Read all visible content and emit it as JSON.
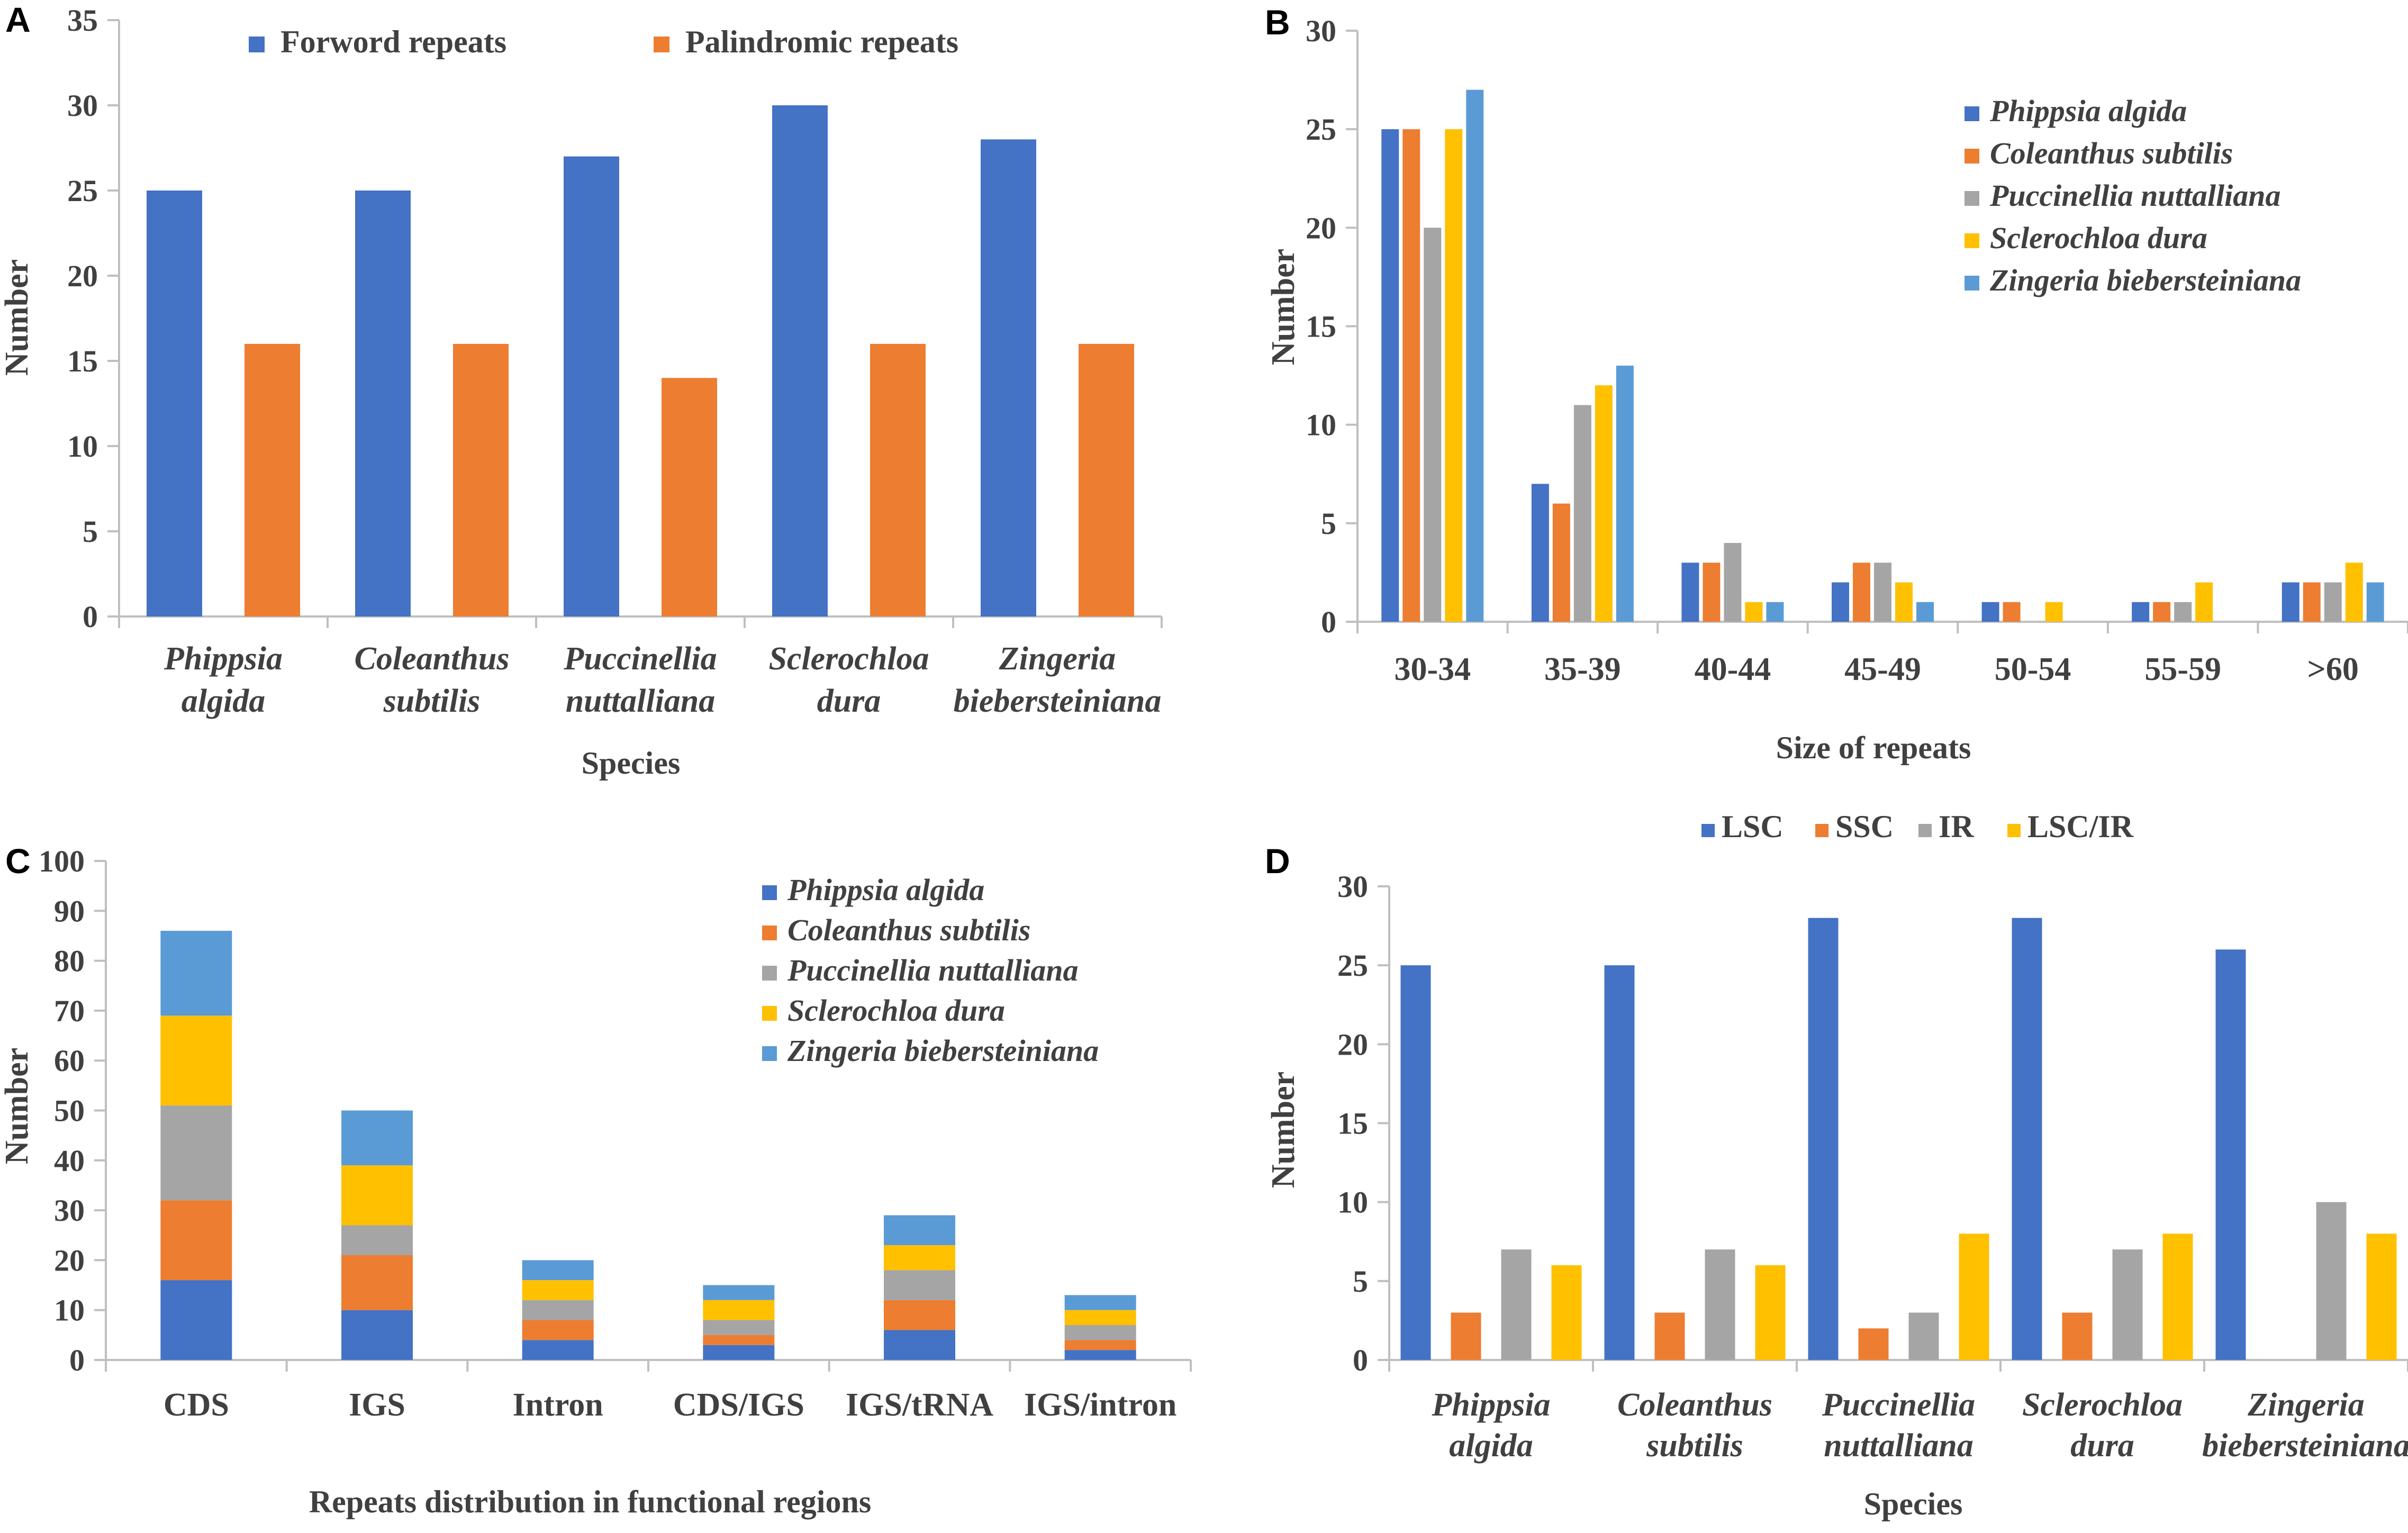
{
  "chart_data": [
    {
      "panel": "A",
      "type": "bar",
      "title": "",
      "xlabel": "Species",
      "ylabel": "Number",
      "ylim": [
        0,
        35
      ],
      "yticks": [
        "0",
        "5",
        "10",
        "15",
        "20",
        "25",
        "30",
        "35"
      ],
      "categories": [
        [
          "Phippsia",
          "algida"
        ],
        [
          "Coleanthus",
          "subtilis"
        ],
        [
          "Puccinellia",
          "nuttalliana"
        ],
        [
          "Sclerochloa",
          "dura"
        ],
        [
          "Zingeria",
          "biebersteiniana"
        ]
      ],
      "series": [
        {
          "name": "Forword  repeats",
          "color": "#4472C4",
          "values": [
            25,
            25,
            27,
            30,
            28
          ]
        },
        {
          "name": "Palindromic repeats",
          "color": "#ED7D31",
          "values": [
            16,
            16,
            14,
            16,
            16
          ]
        }
      ],
      "legend_position": "top"
    },
    {
      "panel": "B",
      "type": "bar",
      "title": "",
      "xlabel": "Size of repeats",
      "ylabel": "Number",
      "ylim": [
        0,
        30
      ],
      "yticks": [
        "0",
        "5",
        "10",
        "15",
        "20",
        "25",
        "30"
      ],
      "categories": [
        "30-34",
        "35-39",
        "40-44",
        "45-49",
        "50-54",
        "55-59",
        ">60"
      ],
      "series": [
        {
          "name": "Phippsia algida",
          "color": "#4472C4",
          "values": [
            25,
            7,
            3,
            2,
            1,
            1,
            2
          ]
        },
        {
          "name": "Coleanthus subtilis",
          "color": "#ED7D31",
          "values": [
            25,
            6,
            3,
            3,
            1,
            1,
            2
          ]
        },
        {
          "name": "Puccinellia nuttalliana",
          "color": "#A5A5A5",
          "values": [
            20,
            11,
            4,
            3,
            0,
            1,
            2
          ]
        },
        {
          "name": "Sclerochloa dura",
          "color": "#FFC000",
          "values": [
            25,
            12,
            1,
            2,
            1,
            2,
            3
          ]
        },
        {
          "name": "Zingeria biebersteiniana",
          "color": "#5B9BD5",
          "values": [
            27,
            13,
            1,
            1,
            0,
            0,
            2
          ]
        }
      ],
      "legend_position": "top-right"
    },
    {
      "panel": "C",
      "type": "stacked-bar",
      "title": "",
      "xlabel": "Repeats distribution in functional regions",
      "ylabel": "Number",
      "ylim": [
        0,
        100
      ],
      "yticks": [
        "0",
        "10",
        "20",
        "30",
        "40",
        "50",
        "60",
        "70",
        "80",
        "90",
        "100"
      ],
      "categories": [
        "CDS",
        "IGS",
        "Intron",
        "CDS/IGS",
        "IGS/tRNA",
        "IGS/intron"
      ],
      "series": [
        {
          "name": "Phippsia algida",
          "color": "#4472C4",
          "values": [
            16,
            10,
            4,
            3,
            6,
            2
          ]
        },
        {
          "name": "Coleanthus subtilis",
          "color": "#ED7D31",
          "values": [
            16,
            11,
            4,
            2,
            6,
            2
          ]
        },
        {
          "name": "Puccinellia nuttalliana",
          "color": "#A5A5A5",
          "values": [
            19,
            6,
            4,
            3,
            6,
            3
          ]
        },
        {
          "name": "Sclerochloa dura",
          "color": "#FFC000",
          "values": [
            18,
            12,
            4,
            4,
            5,
            3
          ]
        },
        {
          "name": "Zingeria biebersteiniana",
          "color": "#5B9BD5",
          "values": [
            17,
            11,
            4,
            3,
            6,
            3
          ]
        }
      ],
      "legend_position": "top-right"
    },
    {
      "panel": "D",
      "type": "bar",
      "title": "",
      "xlabel": "Species",
      "ylabel": "Number",
      "ylim": [
        0,
        30
      ],
      "yticks": [
        "0",
        "5",
        "10",
        "15",
        "20",
        "25",
        "30"
      ],
      "categories": [
        [
          "Phippsia",
          "algida"
        ],
        [
          "Coleanthus",
          "subtilis"
        ],
        [
          "Puccinellia",
          "nuttalliana"
        ],
        [
          "Sclerochloa",
          "dura"
        ],
        [
          "Zingeria",
          "biebersteiniana"
        ]
      ],
      "series": [
        {
          "name": "LSC",
          "color": "#4472C4",
          "values": [
            25,
            25,
            28,
            28,
            26
          ]
        },
        {
          "name": "SSC",
          "color": "#ED7D31",
          "values": [
            3,
            3,
            2,
            3,
            0
          ]
        },
        {
          "name": "IR",
          "color": "#A5A5A5",
          "values": [
            7,
            7,
            3,
            7,
            10
          ]
        },
        {
          "name": "LSC/IR",
          "color": "#FFC000",
          "values": [
            6,
            6,
            8,
            8,
            8
          ]
        }
      ],
      "legend_position": "top"
    }
  ]
}
